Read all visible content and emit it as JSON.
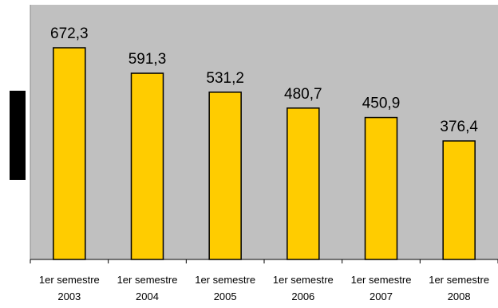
{
  "chart_data": {
    "type": "bar",
    "categories": [
      [
        "1er semestre",
        "2003"
      ],
      [
        "1er semestre",
        "2004"
      ],
      [
        "1er semestre",
        "2005"
      ],
      [
        "1er semestre",
        "2006"
      ],
      [
        "1er semestre",
        "2007"
      ],
      [
        "1er semestre",
        "2008"
      ]
    ],
    "values": [
      672.3,
      591.3,
      531.2,
      480.7,
      450.9,
      376.4
    ],
    "value_labels": [
      "672,3",
      "591,3",
      "531,2",
      "480,7",
      "450,9",
      "376,4"
    ],
    "title": "",
    "xlabel": "",
    "ylabel": "",
    "ylim": [
      0,
      800
    ],
    "grid": false,
    "legend": "none",
    "colors": {
      "plot_background": "#C0C0C0",
      "bar_fill": "#FFCC00",
      "bar_stroke": "#000000",
      "axis": "#000000"
    }
  }
}
